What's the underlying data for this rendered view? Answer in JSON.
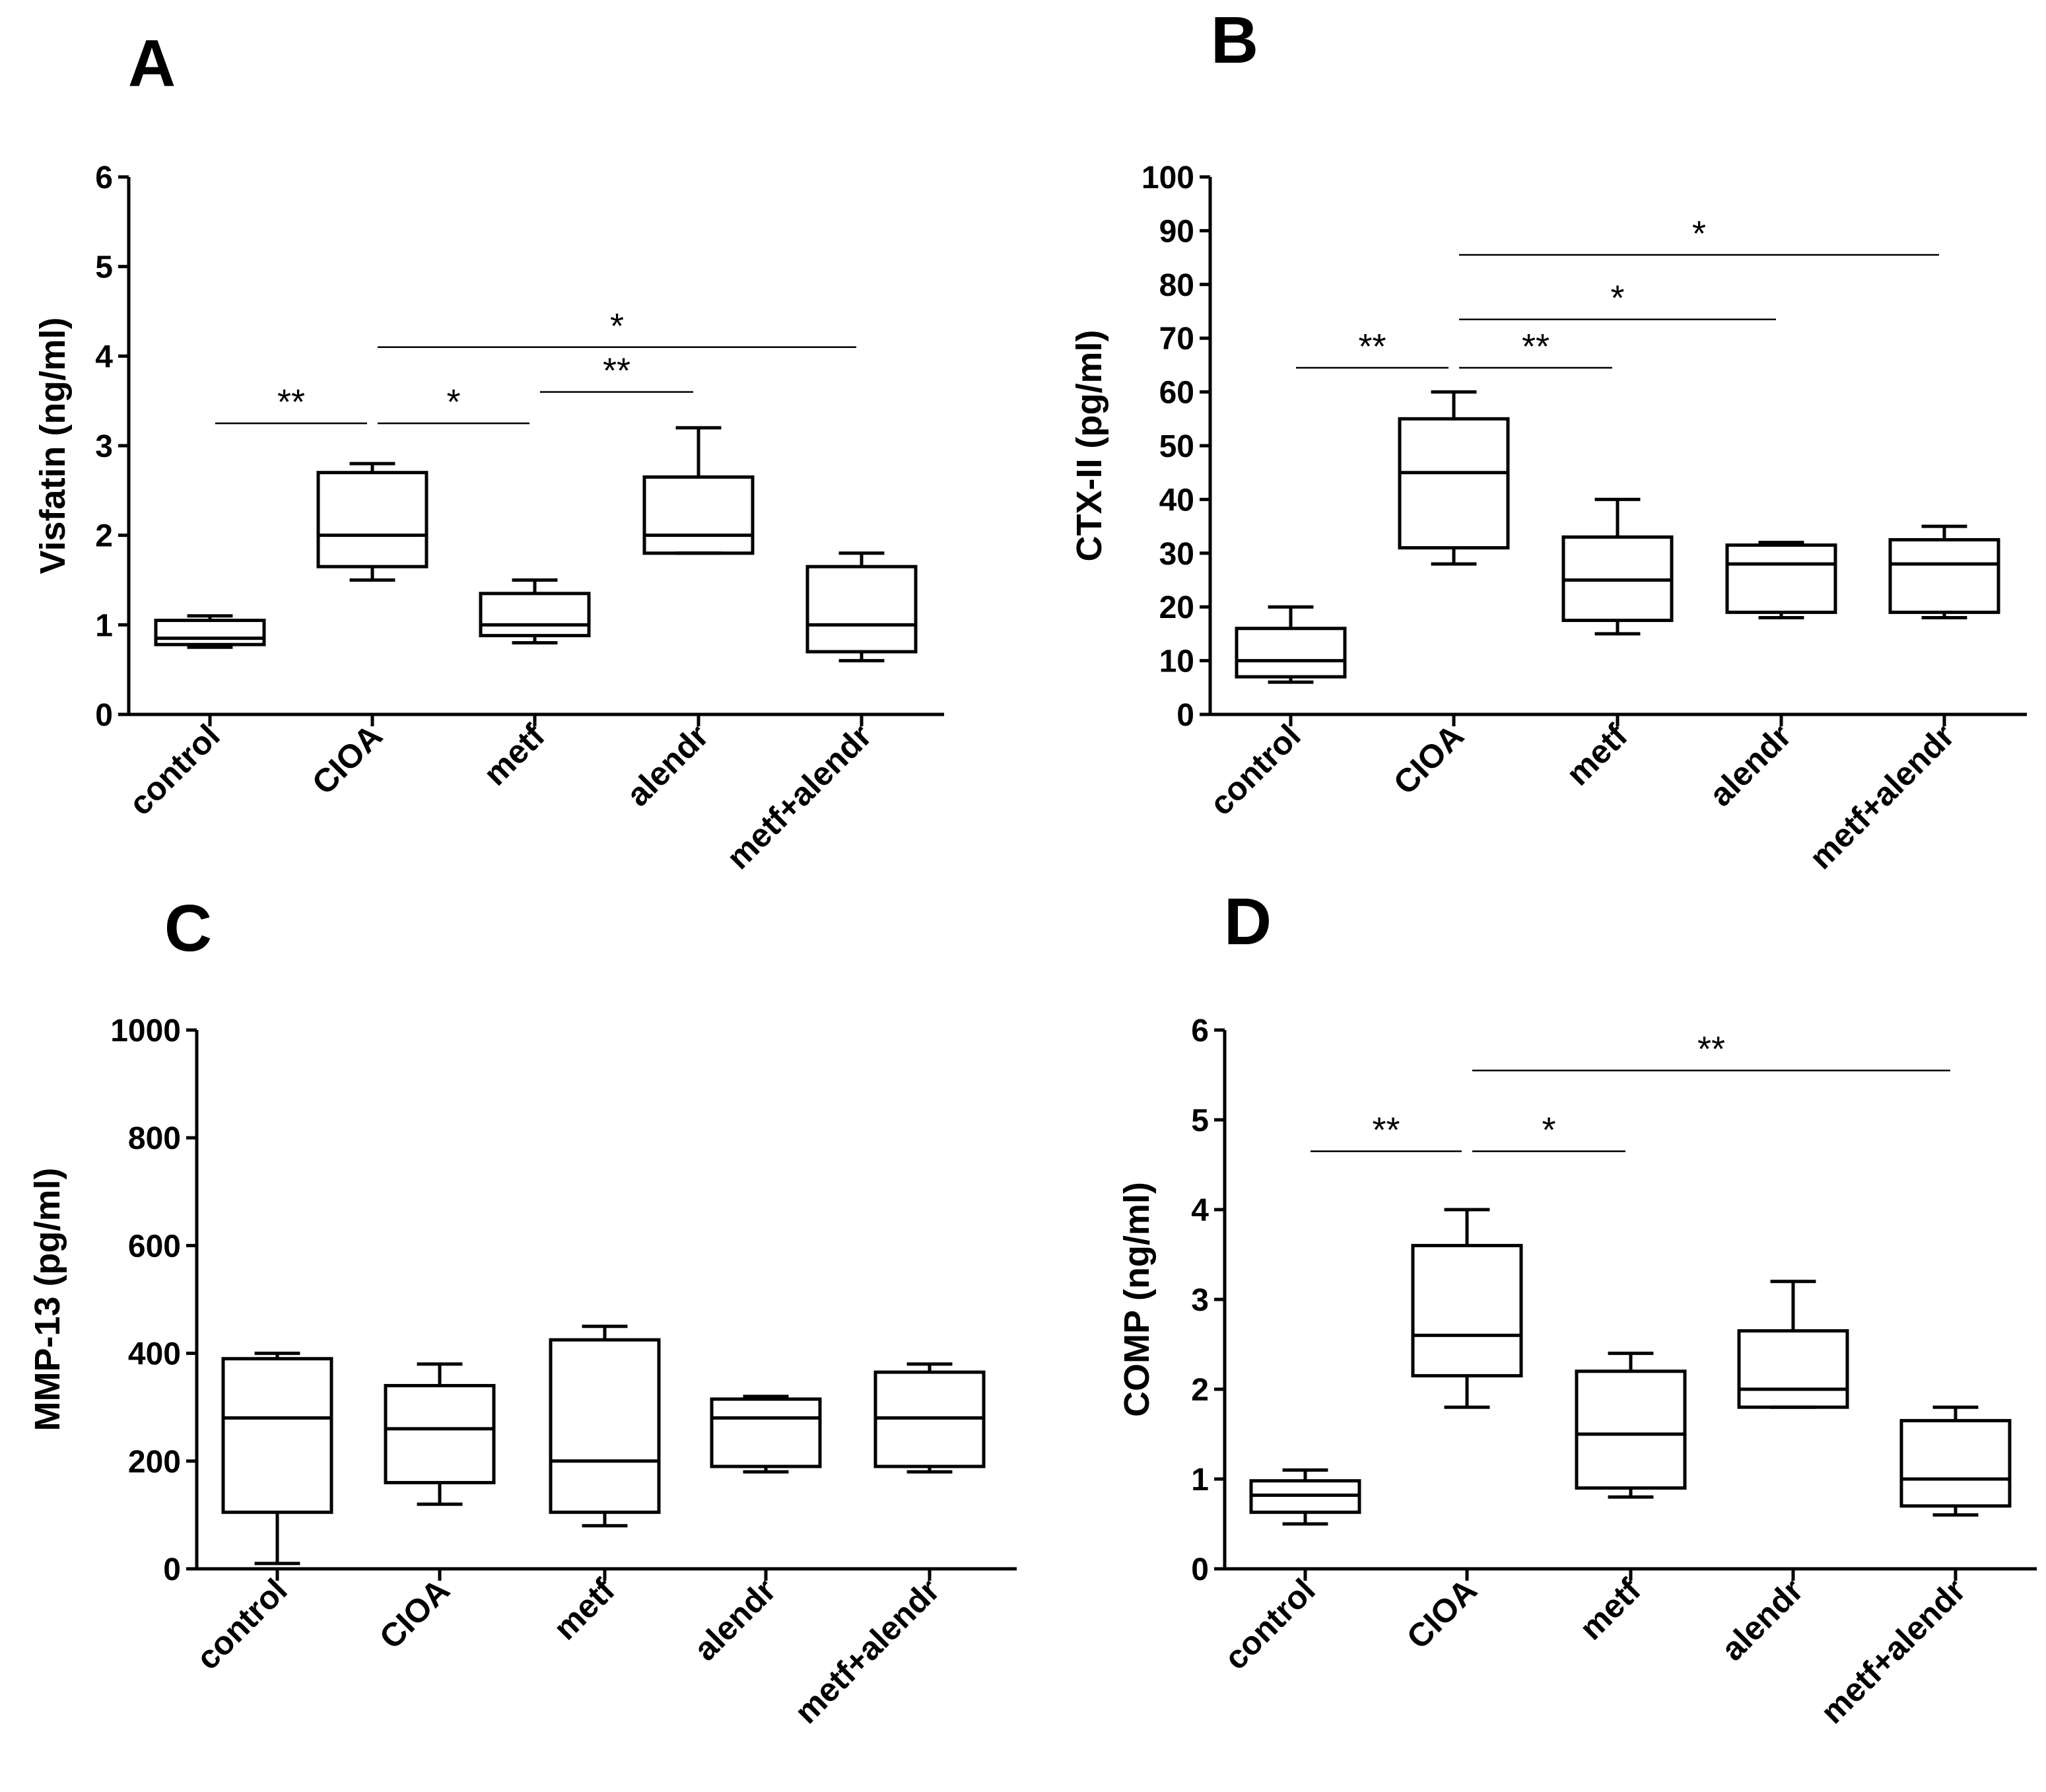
{
  "chart_data": [
    {
      "panel": "A",
      "type": "box",
      "title": "",
      "xlabel": "",
      "ylabel": "Visfatin (ng/ml)",
      "ylim": [
        0,
        6
      ],
      "yticks": [
        "0",
        "1",
        "2",
        "3",
        "4",
        "5",
        "6"
      ],
      "categories": [
        "control",
        "CIOA",
        "metf",
        "alendr",
        "metf+alendr"
      ],
      "boxes": [
        {
          "min": 0.75,
          "q1": 0.78,
          "median": 0.85,
          "q3": 1.05,
          "max": 1.1
        },
        {
          "min": 1.5,
          "q1": 1.65,
          "median": 2.0,
          "q3": 2.7,
          "max": 2.8
        },
        {
          "min": 0.8,
          "q1": 0.88,
          "median": 1.0,
          "q3": 1.35,
          "max": 1.5
        },
        {
          "min": 1.8,
          "q1": 1.8,
          "median": 2.0,
          "q3": 2.65,
          "max": 3.2
        },
        {
          "min": 0.6,
          "q1": 0.7,
          "median": 1.0,
          "q3": 1.65,
          "max": 1.8
        }
      ],
      "significance": [
        {
          "from": 0,
          "to": 1,
          "label": "**",
          "y": 3.25
        },
        {
          "from": 1,
          "to": 2,
          "label": "*",
          "y": 3.25
        },
        {
          "from": 2,
          "to": 3,
          "label": "**",
          "y": 3.6
        },
        {
          "from": 1,
          "to": 4,
          "label": "*",
          "y": 4.1
        }
      ]
    },
    {
      "panel": "B",
      "type": "box",
      "title": "",
      "xlabel": "",
      "ylabel": "CTX-II (pg/ml)",
      "ylim": [
        0,
        100
      ],
      "yticks": [
        "0",
        "10",
        "20",
        "30",
        "40",
        "50",
        "60",
        "70",
        "80",
        "90",
        "100"
      ],
      "categories": [
        "control",
        "CIOA",
        "metf",
        "alendr",
        "metf+alendr"
      ],
      "boxes": [
        {
          "min": 6,
          "q1": 7,
          "median": 10,
          "q3": 16,
          "max": 20
        },
        {
          "min": 28,
          "q1": 31,
          "median": 45,
          "q3": 55,
          "max": 60
        },
        {
          "min": 15,
          "q1": 17.5,
          "median": 25,
          "q3": 33,
          "max": 40
        },
        {
          "min": 18,
          "q1": 19,
          "median": 28,
          "q3": 31.5,
          "max": 32
        },
        {
          "min": 18,
          "q1": 19,
          "median": 28,
          "q3": 32.5,
          "max": 35
        }
      ],
      "significance": [
        {
          "from": 0,
          "to": 1,
          "label": "**",
          "y": 64.5
        },
        {
          "from": 1,
          "to": 2,
          "label": "**",
          "y": 64.5
        },
        {
          "from": 1,
          "to": 3,
          "label": "*",
          "y": 73.5
        },
        {
          "from": 1,
          "to": 4,
          "label": "*",
          "y": 85.5
        }
      ]
    },
    {
      "panel": "C",
      "type": "box",
      "title": "",
      "xlabel": "",
      "ylabel": "MMP-13 (pg/ml)",
      "ylim": [
        0,
        1000
      ],
      "yticks": [
        "0",
        "200",
        "400",
        "600",
        "800",
        "1000"
      ],
      "categories": [
        "control",
        "CIOA",
        "metf",
        "alendr",
        "metf+alendr"
      ],
      "boxes": [
        {
          "min": 10,
          "q1": 105,
          "median": 280,
          "q3": 390,
          "max": 400
        },
        {
          "min": 120,
          "q1": 160,
          "median": 260,
          "q3": 340,
          "max": 380
        },
        {
          "min": 80,
          "q1": 105,
          "median": 200,
          "q3": 425,
          "max": 450
        },
        {
          "min": 180,
          "q1": 190,
          "median": 280,
          "q3": 315,
          "max": 320
        },
        {
          "min": 180,
          "q1": 190,
          "median": 280,
          "q3": 365,
          "max": 380
        }
      ],
      "significance": []
    },
    {
      "panel": "D",
      "type": "box",
      "title": "",
      "xlabel": "",
      "ylabel": "COMP (ng/ml)",
      "ylim": [
        0,
        6
      ],
      "yticks": [
        "0",
        "1",
        "2",
        "3",
        "4",
        "5",
        "6"
      ],
      "categories": [
        "control",
        "CIOA",
        "metf",
        "alendr",
        "metf+alendr"
      ],
      "boxes": [
        {
          "min": 0.5,
          "q1": 0.63,
          "median": 0.82,
          "q3": 0.98,
          "max": 1.1
        },
        {
          "min": 1.8,
          "q1": 2.15,
          "median": 2.6,
          "q3": 3.6,
          "max": 4.0
        },
        {
          "min": 0.8,
          "q1": 0.9,
          "median": 1.5,
          "q3": 2.2,
          "max": 2.4
        },
        {
          "min": 1.8,
          "q1": 1.8,
          "median": 2.0,
          "q3": 2.65,
          "max": 3.2
        },
        {
          "min": 0.6,
          "q1": 0.7,
          "median": 1.0,
          "q3": 1.65,
          "max": 1.8
        }
      ],
      "significance": [
        {
          "from": 0,
          "to": 1,
          "label": "**",
          "y": 4.65
        },
        {
          "from": 1,
          "to": 2,
          "label": "*",
          "y": 4.65
        },
        {
          "from": 1,
          "to": 4,
          "label": "**",
          "y": 5.55
        }
      ]
    }
  ]
}
